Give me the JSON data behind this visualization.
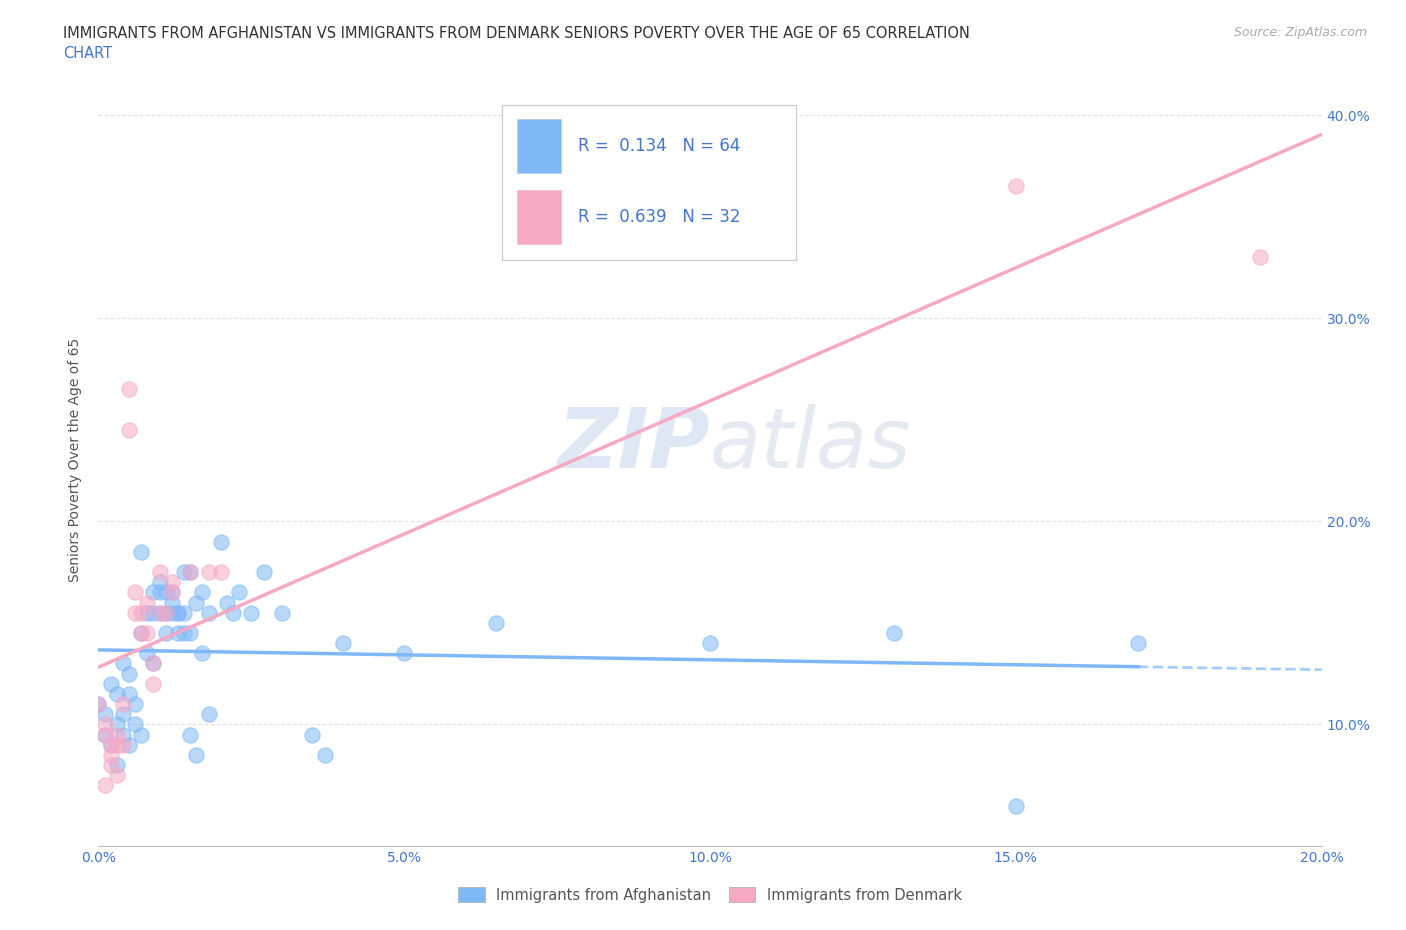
{
  "title_line1": "IMMIGRANTS FROM AFGHANISTAN VS IMMIGRANTS FROM DENMARK SENIORS POVERTY OVER THE AGE OF 65 CORRELATION",
  "title_line2": "CHART",
  "source": "Source: ZipAtlas.com",
  "watermark": "ZIPAtlas",
  "ylabel": "Seniors Poverty Over the Age of 65",
  "xlim": [
    0.0,
    0.2
  ],
  "ylim": [
    0.04,
    0.42
  ],
  "xticks": [
    0.0,
    0.05,
    0.1,
    0.15,
    0.2
  ],
  "yticks": [
    0.1,
    0.2,
    0.3,
    0.4
  ],
  "xtick_labels": [
    "0.0%",
    "5.0%",
    "10.0%",
    "15.0%",
    "20.0%"
  ],
  "ytick_labels_right": [
    "10.0%",
    "20.0%",
    "30.0%",
    "40.0%"
  ],
  "afghanistan_color": "#7eb8f7",
  "denmark_color": "#f7a8c4",
  "afghanistan_R": 0.134,
  "afghanistan_N": 64,
  "denmark_R": 0.639,
  "denmark_N": 32,
  "background_color": "#ffffff",
  "grid_color": "#e0e0e0",
  "legend_R_N_color": "#4477cc",
  "afghanistan_scatter": [
    [
      0.0,
      0.11
    ],
    [
      0.001,
      0.105
    ],
    [
      0.001,
      0.095
    ],
    [
      0.002,
      0.12
    ],
    [
      0.002,
      0.09
    ],
    [
      0.003,
      0.115
    ],
    [
      0.003,
      0.1
    ],
    [
      0.003,
      0.08
    ],
    [
      0.004,
      0.105
    ],
    [
      0.004,
      0.095
    ],
    [
      0.004,
      0.13
    ],
    [
      0.005,
      0.09
    ],
    [
      0.005,
      0.115
    ],
    [
      0.005,
      0.125
    ],
    [
      0.006,
      0.11
    ],
    [
      0.006,
      0.1
    ],
    [
      0.007,
      0.185
    ],
    [
      0.007,
      0.145
    ],
    [
      0.007,
      0.095
    ],
    [
      0.008,
      0.135
    ],
    [
      0.008,
      0.155
    ],
    [
      0.009,
      0.13
    ],
    [
      0.009,
      0.155
    ],
    [
      0.009,
      0.165
    ],
    [
      0.01,
      0.17
    ],
    [
      0.01,
      0.155
    ],
    [
      0.01,
      0.165
    ],
    [
      0.011,
      0.145
    ],
    [
      0.011,
      0.155
    ],
    [
      0.011,
      0.165
    ],
    [
      0.012,
      0.16
    ],
    [
      0.012,
      0.155
    ],
    [
      0.012,
      0.165
    ],
    [
      0.013,
      0.155
    ],
    [
      0.013,
      0.145
    ],
    [
      0.013,
      0.155
    ],
    [
      0.014,
      0.175
    ],
    [
      0.014,
      0.145
    ],
    [
      0.014,
      0.155
    ],
    [
      0.015,
      0.145
    ],
    [
      0.015,
      0.175
    ],
    [
      0.015,
      0.095
    ],
    [
      0.016,
      0.085
    ],
    [
      0.016,
      0.16
    ],
    [
      0.017,
      0.165
    ],
    [
      0.017,
      0.135
    ],
    [
      0.018,
      0.155
    ],
    [
      0.018,
      0.105
    ],
    [
      0.02,
      0.19
    ],
    [
      0.021,
      0.16
    ],
    [
      0.022,
      0.155
    ],
    [
      0.023,
      0.165
    ],
    [
      0.025,
      0.155
    ],
    [
      0.027,
      0.175
    ],
    [
      0.03,
      0.155
    ],
    [
      0.035,
      0.095
    ],
    [
      0.037,
      0.085
    ],
    [
      0.04,
      0.14
    ],
    [
      0.05,
      0.135
    ],
    [
      0.065,
      0.15
    ],
    [
      0.1,
      0.14
    ],
    [
      0.13,
      0.145
    ],
    [
      0.15,
      0.06
    ],
    [
      0.17,
      0.14
    ]
  ],
  "denmark_scatter": [
    [
      0.0,
      0.11
    ],
    [
      0.001,
      0.1
    ],
    [
      0.001,
      0.095
    ],
    [
      0.001,
      0.07
    ],
    [
      0.002,
      0.09
    ],
    [
      0.002,
      0.08
    ],
    [
      0.002,
      0.085
    ],
    [
      0.003,
      0.09
    ],
    [
      0.003,
      0.095
    ],
    [
      0.003,
      0.075
    ],
    [
      0.004,
      0.11
    ],
    [
      0.004,
      0.09
    ],
    [
      0.005,
      0.265
    ],
    [
      0.005,
      0.245
    ],
    [
      0.006,
      0.165
    ],
    [
      0.006,
      0.155
    ],
    [
      0.007,
      0.155
    ],
    [
      0.007,
      0.145
    ],
    [
      0.008,
      0.16
    ],
    [
      0.008,
      0.145
    ],
    [
      0.009,
      0.13
    ],
    [
      0.009,
      0.12
    ],
    [
      0.01,
      0.155
    ],
    [
      0.01,
      0.175
    ],
    [
      0.011,
      0.155
    ],
    [
      0.012,
      0.165
    ],
    [
      0.012,
      0.17
    ],
    [
      0.015,
      0.175
    ],
    [
      0.018,
      0.175
    ],
    [
      0.02,
      0.175
    ],
    [
      0.15,
      0.365
    ],
    [
      0.19,
      0.33
    ]
  ]
}
